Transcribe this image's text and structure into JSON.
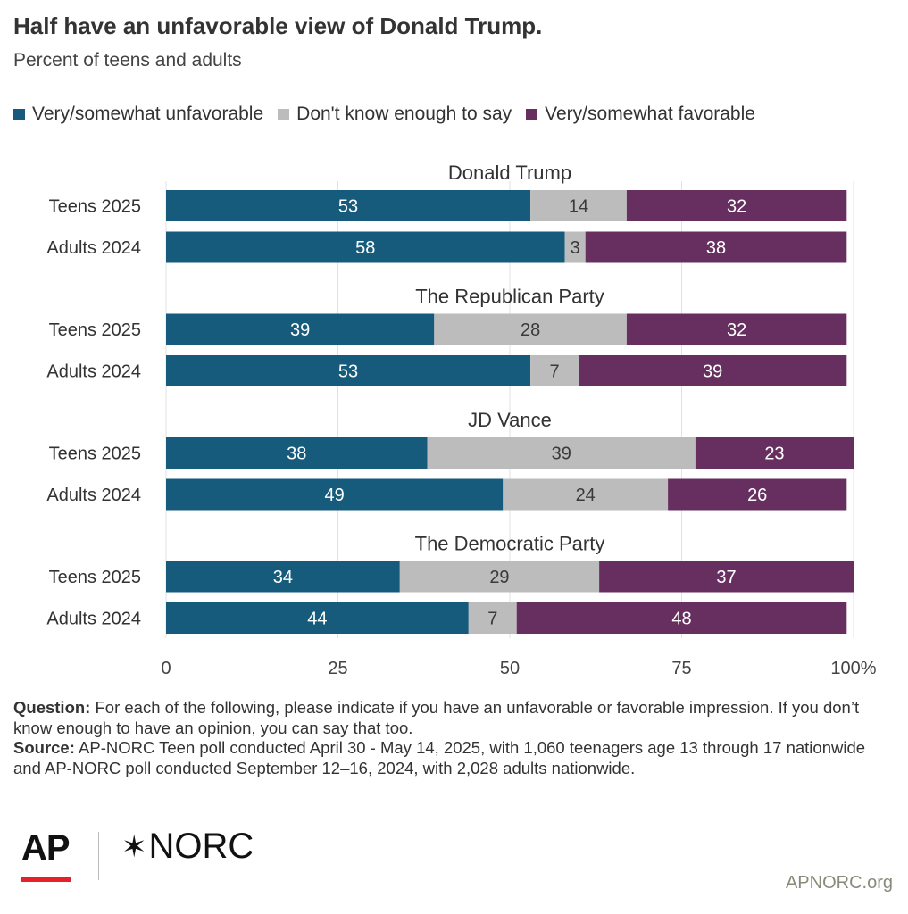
{
  "title": "Half have an unfavorable view of Donald Trump.",
  "subtitle": "Percent of teens and adults",
  "legend": [
    {
      "label": "Very/somewhat unfavorable",
      "color": "#165b7c"
    },
    {
      "label": "Don't know enough to say",
      "color": "#bcbcbc"
    },
    {
      "label": "Very/somewhat favorable",
      "color": "#662f60"
    }
  ],
  "chart_data": {
    "type": "bar",
    "orientation": "horizontal",
    "stacked": true,
    "xlim": [
      0,
      100
    ],
    "x_ticks": [
      "0",
      "25",
      "50",
      "75",
      "100%"
    ],
    "grid": true,
    "legend_position": "top",
    "series_names": [
      "Very/somewhat unfavorable",
      "Don't know enough to say",
      "Very/somewhat favorable"
    ],
    "groups": [
      {
        "name": "Donald Trump",
        "rows": [
          {
            "label": "Teens 2025",
            "values": [
              53,
              14,
              32
            ]
          },
          {
            "label": "Adults 2024",
            "values": [
              58,
              3,
              38
            ]
          }
        ]
      },
      {
        "name": "The Republican Party",
        "rows": [
          {
            "label": "Teens 2025",
            "values": [
              39,
              28,
              32
            ]
          },
          {
            "label": "Adults 2024",
            "values": [
              53,
              7,
              39
            ]
          }
        ]
      },
      {
        "name": "JD Vance",
        "rows": [
          {
            "label": "Teens 2025",
            "values": [
              38,
              39,
              23
            ]
          },
          {
            "label": "Adults 2024",
            "values": [
              49,
              24,
              26
            ]
          }
        ]
      },
      {
        "name": "The Democratic Party",
        "rows": [
          {
            "label": "Teens 2025",
            "values": [
              34,
              29,
              37
            ]
          },
          {
            "label": "Adults 2024",
            "values": [
              44,
              7,
              48
            ]
          }
        ]
      }
    ]
  },
  "notes": {
    "question_label": "Question:",
    "question_text": " For each of the following, please indicate if you have an unfavorable or favorable impression. If you don’t know enough to have an opinion, you can say that too.",
    "source_label": "Source:",
    "source_text": " AP-NORC Teen poll conducted April 30 - May 14, 2025, with 1,060 teenagers age 13 through 17 nationwide and AP-NORC poll conducted September 12–16, 2024, with 2,028 adults nationwide."
  },
  "footer": {
    "ap_logo": "AP",
    "norc_logo": "NORC",
    "site": "APNORC.org"
  }
}
